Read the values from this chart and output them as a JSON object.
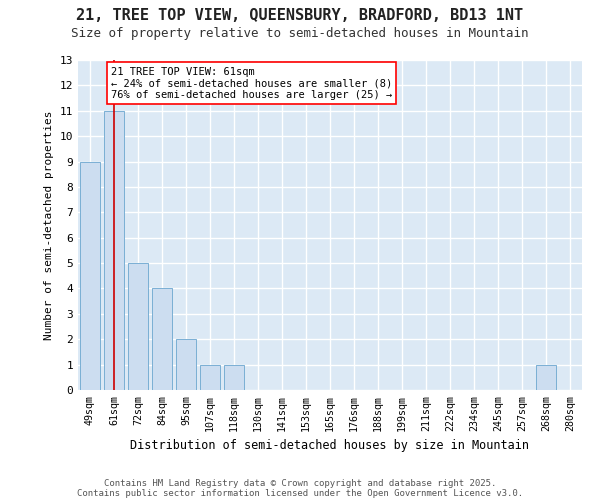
{
  "title": "21, TREE TOP VIEW, QUEENSBURY, BRADFORD, BD13 1NT",
  "subtitle": "Size of property relative to semi-detached houses in Mountain",
  "xlabel": "Distribution of semi-detached houses by size in Mountain",
  "ylabel": "Number of semi-detached properties",
  "categories": [
    "49sqm",
    "61sqm",
    "72sqm",
    "84sqm",
    "95sqm",
    "107sqm",
    "118sqm",
    "130sqm",
    "141sqm",
    "153sqm",
    "165sqm",
    "176sqm",
    "188sqm",
    "199sqm",
    "211sqm",
    "222sqm",
    "234sqm",
    "245sqm",
    "257sqm",
    "268sqm",
    "280sqm"
  ],
  "values": [
    9,
    11,
    5,
    4,
    2,
    1,
    1,
    0,
    0,
    0,
    0,
    0,
    0,
    0,
    0,
    0,
    0,
    0,
    0,
    1,
    0
  ],
  "bar_color": "#ccddf0",
  "bar_edge_color": "#7aafd4",
  "subject_bar_index": 1,
  "annotation_text": "21 TREE TOP VIEW: 61sqm\n← 24% of semi-detached houses are smaller (8)\n76% of semi-detached houses are larger (25) →",
  "vline_color": "#cc0000",
  "vline_x_index": 1,
  "ylim": [
    0,
    13
  ],
  "yticks": [
    0,
    1,
    2,
    3,
    4,
    5,
    6,
    7,
    8,
    9,
    10,
    11,
    12,
    13
  ],
  "plot_bg_color": "#dce9f5",
  "fig_bg_color": "#ffffff",
  "grid_color": "#ffffff",
  "footnote1": "Contains HM Land Registry data © Crown copyright and database right 2025.",
  "footnote2": "Contains public sector information licensed under the Open Government Licence v3.0."
}
